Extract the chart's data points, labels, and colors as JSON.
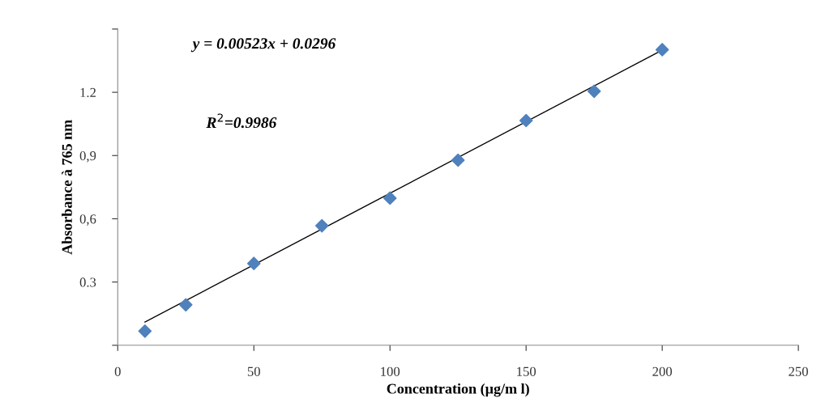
{
  "chart_data": {
    "type": "scatter",
    "xlabel": "Concentration (µg/m l)",
    "ylabel": "Absorbance à 765 nm",
    "annotations": [
      "y = 0.00523x + 0.0296",
      "R$^{2}$=0.9986"
    ],
    "x": [
      10,
      25,
      50,
      75,
      100,
      125,
      150,
      175,
      200
    ],
    "series": [
      {
        "color": "#4f81bd",
        "marker": "diamond",
        "values": [
          0.067,
          0.192,
          0.388,
          0.567,
          0.698,
          0.878,
          1.066,
          1.205,
          1.402
        ]
      },
      {
        "type": "line",
        "color": "#000000",
        "marker": "none",
        "x": [
          10,
          200
        ],
        "values": [
          0.11,
          1.4
        ]
      }
    ],
    "xlim": [
      0,
      250
    ],
    "xticks": [
      0,
      50,
      100,
      150,
      200,
      250
    ],
    "ylim": [
      0,
      1.5
    ],
    "yticks": [
      {
        "value": 0,
        "label": null
      },
      {
        "value": 0.3,
        "label": "0.3"
      },
      {
        "value": 0.6,
        "label": "0,6"
      },
      {
        "value": 0.9,
        "label": "0,9"
      },
      {
        "value": 1.2,
        "label": "1.2"
      },
      {
        "value": 1.5,
        "label": null
      }
    ],
    "grid": false,
    "legend": false
  }
}
